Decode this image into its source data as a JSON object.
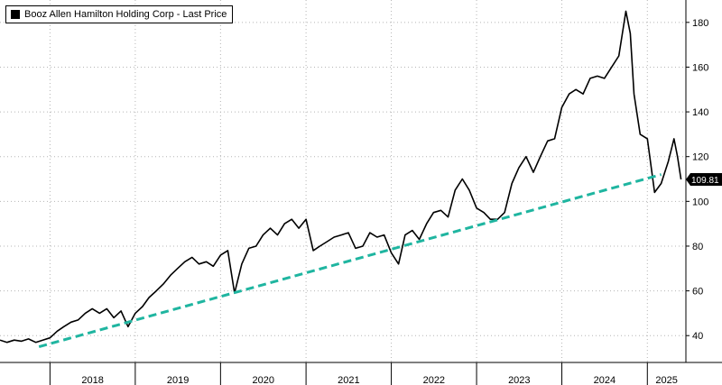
{
  "chart_data": {
    "type": "line",
    "title": "",
    "legend": {
      "label": "Booz Allen Hamilton Holding Corp - Last Price",
      "placement": "top-left"
    },
    "x_tick_labels": [
      "2018",
      "2019",
      "2020",
      "2021",
      "2022",
      "2023",
      "2024",
      "2025"
    ],
    "y_tick_labels": [
      "40",
      "60",
      "80",
      "100",
      "120",
      "140",
      "160",
      "180"
    ],
    "ylim": [
      28,
      190
    ],
    "xlim": [
      "2017-06-01",
      "2025-06-15"
    ],
    "grid": true,
    "last_value_label": "109.81",
    "colors": {
      "price_line": "#000000",
      "trend_line": "#1fb5a0",
      "grid": "#b5b5b5",
      "last_value_badge": "#000000"
    },
    "series": [
      {
        "name": "Booz Allen Hamilton Holding Corp - Last Price",
        "style": "solid",
        "points": [
          [
            "2017-06-01",
            38
          ],
          [
            "2017-07-01",
            37
          ],
          [
            "2017-08-01",
            38
          ],
          [
            "2017-09-01",
            37.5
          ],
          [
            "2017-10-01",
            38.5
          ],
          [
            "2017-11-01",
            37
          ],
          [
            "2017-12-01",
            38
          ],
          [
            "2018-01-01",
            39
          ],
          [
            "2018-02-01",
            42
          ],
          [
            "2018-03-01",
            44
          ],
          [
            "2018-04-01",
            46
          ],
          [
            "2018-05-01",
            47
          ],
          [
            "2018-06-01",
            50
          ],
          [
            "2018-07-01",
            52
          ],
          [
            "2018-08-01",
            50
          ],
          [
            "2018-09-01",
            52
          ],
          [
            "2018-10-01",
            48
          ],
          [
            "2018-11-01",
            51
          ],
          [
            "2018-12-01",
            44
          ],
          [
            "2019-01-01",
            50
          ],
          [
            "2019-02-01",
            53
          ],
          [
            "2019-03-01",
            57
          ],
          [
            "2019-04-01",
            60
          ],
          [
            "2019-05-01",
            63
          ],
          [
            "2019-06-01",
            67
          ],
          [
            "2019-07-01",
            70
          ],
          [
            "2019-08-01",
            73
          ],
          [
            "2019-09-01",
            75
          ],
          [
            "2019-10-01",
            72
          ],
          [
            "2019-11-01",
            73
          ],
          [
            "2019-12-01",
            71
          ],
          [
            "2020-01-01",
            76
          ],
          [
            "2020-02-01",
            78
          ],
          [
            "2020-03-01",
            59
          ],
          [
            "2020-04-01",
            72
          ],
          [
            "2020-05-01",
            79
          ],
          [
            "2020-06-01",
            80
          ],
          [
            "2020-07-01",
            85
          ],
          [
            "2020-08-01",
            88
          ],
          [
            "2020-09-01",
            85
          ],
          [
            "2020-10-01",
            90
          ],
          [
            "2020-11-01",
            92
          ],
          [
            "2020-12-01",
            88
          ],
          [
            "2021-01-01",
            92
          ],
          [
            "2021-02-01",
            78
          ],
          [
            "2021-03-01",
            80
          ],
          [
            "2021-04-01",
            82
          ],
          [
            "2021-05-01",
            84
          ],
          [
            "2021-06-01",
            85
          ],
          [
            "2021-07-01",
            86
          ],
          [
            "2021-08-01",
            79
          ],
          [
            "2021-09-01",
            80
          ],
          [
            "2021-10-01",
            86
          ],
          [
            "2021-11-01",
            84
          ],
          [
            "2021-12-01",
            85
          ],
          [
            "2022-01-01",
            77
          ],
          [
            "2022-02-01",
            72
          ],
          [
            "2022-03-01",
            85
          ],
          [
            "2022-04-01",
            87
          ],
          [
            "2022-05-01",
            83
          ],
          [
            "2022-06-01",
            90
          ],
          [
            "2022-07-01",
            95
          ],
          [
            "2022-08-01",
            96
          ],
          [
            "2022-09-01",
            93
          ],
          [
            "2022-10-01",
            105
          ],
          [
            "2022-11-01",
            110
          ],
          [
            "2022-12-01",
            105
          ],
          [
            "2023-01-01",
            97
          ],
          [
            "2023-02-01",
            95
          ],
          [
            "2023-03-01",
            92
          ],
          [
            "2023-04-01",
            92
          ],
          [
            "2023-05-01",
            95
          ],
          [
            "2023-06-01",
            108
          ],
          [
            "2023-07-01",
            115
          ],
          [
            "2023-08-01",
            120
          ],
          [
            "2023-09-01",
            113
          ],
          [
            "2023-10-01",
            120
          ],
          [
            "2023-11-01",
            127
          ],
          [
            "2023-12-01",
            128
          ],
          [
            "2024-01-01",
            142
          ],
          [
            "2024-02-01",
            148
          ],
          [
            "2024-03-01",
            150
          ],
          [
            "2024-04-01",
            148
          ],
          [
            "2024-05-01",
            155
          ],
          [
            "2024-06-01",
            156
          ],
          [
            "2024-07-01",
            155
          ],
          [
            "2024-08-01",
            160
          ],
          [
            "2024-09-01",
            165
          ],
          [
            "2024-10-01",
            185
          ],
          [
            "2024-10-20",
            175
          ],
          [
            "2024-11-05",
            148
          ],
          [
            "2024-12-01",
            130
          ],
          [
            "2025-01-01",
            128
          ],
          [
            "2025-02-01",
            104
          ],
          [
            "2025-03-01",
            108
          ],
          [
            "2025-04-01",
            118
          ],
          [
            "2025-04-25",
            128
          ],
          [
            "2025-05-10",
            120
          ],
          [
            "2025-05-25",
            109.81
          ]
        ]
      },
      {
        "name": "",
        "style": "dashed",
        "points": [
          [
            "2017-11-15",
            35
          ],
          [
            "2025-03-01",
            112
          ]
        ]
      }
    ]
  }
}
